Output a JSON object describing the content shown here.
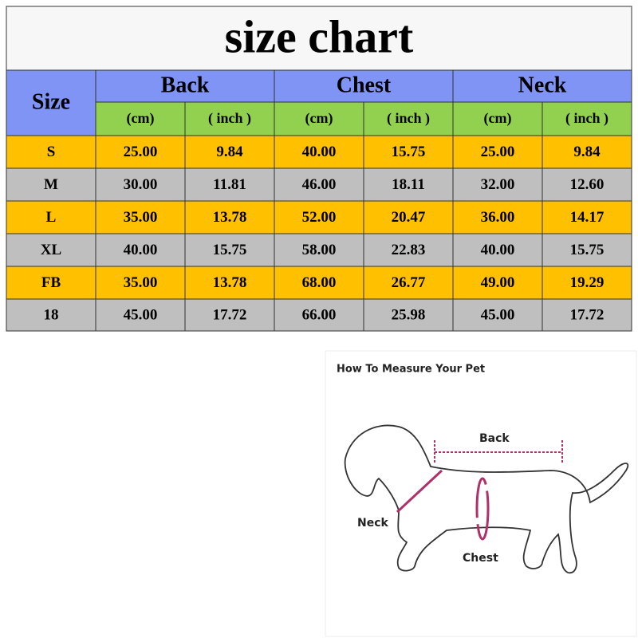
{
  "title": "size chart",
  "table": {
    "header": {
      "size": "Size",
      "groups": [
        "Back",
        "Chest",
        "Neck"
      ],
      "units": [
        "(cm)",
        "( inch )",
        "(cm)",
        "( inch )",
        "(cm)",
        "( inch )"
      ]
    },
    "rows": [
      [
        "S",
        "25.00",
        "9.84",
        "40.00",
        "15.75",
        "25.00",
        "9.84"
      ],
      [
        "M",
        "30.00",
        "11.81",
        "46.00",
        "18.11",
        "32.00",
        "12.60"
      ],
      [
        "L",
        "35.00",
        "13.78",
        "52.00",
        "20.47",
        "36.00",
        "14.17"
      ],
      [
        "XL",
        "40.00",
        "15.75",
        "58.00",
        "22.83",
        "40.00",
        "15.75"
      ],
      [
        "FB",
        "35.00",
        "13.78",
        "68.00",
        "26.77",
        "49.00",
        "19.29"
      ],
      [
        "18",
        "45.00",
        "17.72",
        "66.00",
        "25.98",
        "45.00",
        "17.72"
      ]
    ]
  },
  "diagram": {
    "title": "How To Measure Your Pet",
    "back": "Back",
    "neck": "Neck",
    "chest": "Chest"
  }
}
